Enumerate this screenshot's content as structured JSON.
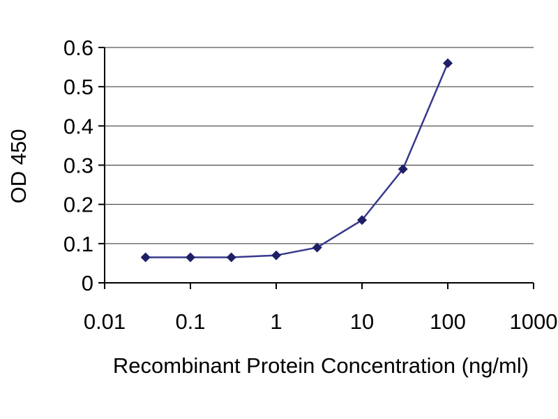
{
  "chart_data": {
    "type": "line",
    "title": "",
    "xlabel": "Recombinant Protein Concentration (ng/ml)",
    "ylabel": "OD 450",
    "x_scale": "log",
    "xlim": [
      0.01,
      1000
    ],
    "ylim": [
      0,
      0.6
    ],
    "x": [
      0.03,
      0.1,
      0.3,
      1,
      3,
      10,
      30,
      100
    ],
    "y": [
      0.065,
      0.065,
      0.065,
      0.07,
      0.09,
      0.16,
      0.29,
      0.56
    ],
    "x_ticks": [
      0.01,
      0.1,
      1,
      10,
      100,
      1000
    ],
    "x_tick_labels": [
      "0.01",
      "0.1",
      "1",
      "10",
      "100",
      "1000"
    ],
    "y_ticks": [
      0,
      0.1,
      0.2,
      0.3,
      0.4,
      0.5,
      0.6
    ],
    "y_tick_labels": [
      "0",
      "0.1",
      "0.2",
      "0.3",
      "0.4",
      "0.5",
      "0.6"
    ],
    "grid": "horizontal",
    "legend": "none",
    "marker": "diamond",
    "series_name": "OD 450 vs concentration",
    "line_color": "#38388c",
    "marker_color": "#1f1f66",
    "axis_color": "#000000",
    "grid_color": "#2a2a2a",
    "text_color": "#000000",
    "background_color": "#ffffff"
  }
}
